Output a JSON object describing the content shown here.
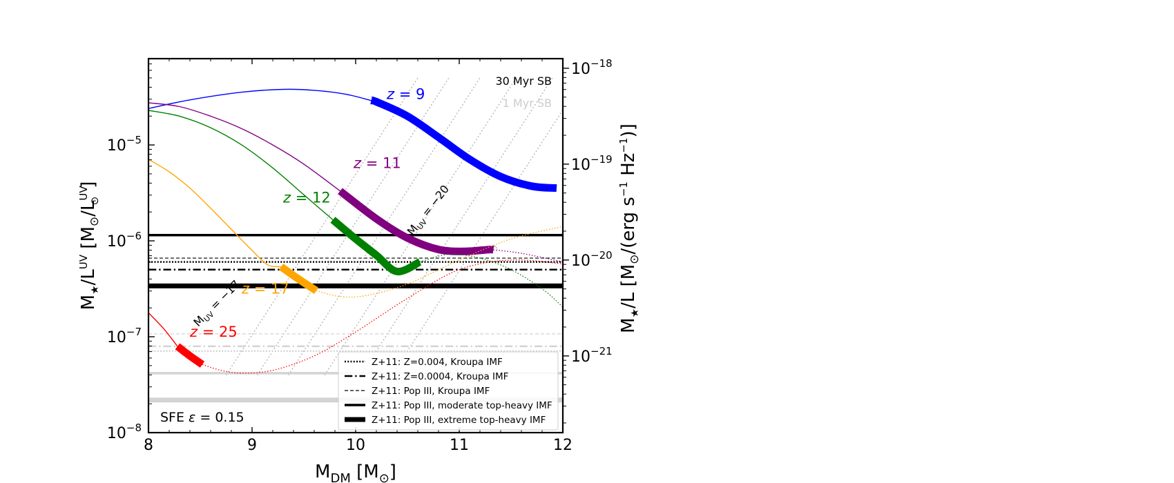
{
  "chart_data": {
    "type": "line",
    "xlabel": "M_DM [M_⊙]",
    "ylabel_left": "M★/L^UV [M⊙/L⊙^UV]",
    "ylabel_right": "M★/L [M⊙/(erg s⁻¹ Hz⁻¹)]",
    "xlim": [
      8,
      12
    ],
    "ylim_log10": [
      -8,
      -4.1
    ],
    "yscale": "log",
    "x_ticks": [
      "8",
      "9",
      "10",
      "11",
      "12"
    ],
    "y_ticks_left": [
      {
        "exp": -8,
        "label": "10",
        "sup": "−8"
      },
      {
        "exp": -7,
        "label": "10",
        "sup": "−7"
      },
      {
        "exp": -6,
        "label": "10",
        "sup": "−6"
      },
      {
        "exp": -5,
        "label": "10",
        "sup": "−5"
      }
    ],
    "y_ticks_right": [
      {
        "exp": -21,
        "label": "10",
        "sup": "−21"
      },
      {
        "exp": -20,
        "label": "10",
        "sup": "−20"
      },
      {
        "exp": -19,
        "label": "10",
        "sup": "−19"
      },
      {
        "exp": -18,
        "label": "10",
        "sup": "−18"
      }
    ],
    "right_axis_offset_log10": -13.8,
    "annotation_sfe": "SFE ε = 0.15",
    "corner_labels": [
      {
        "text": "30 Myr SB",
        "color": "#000000"
      },
      {
        "text": "1 Myr SB",
        "color": "#cccccc"
      }
    ],
    "mag_labels": [
      {
        "text": "M_UV = −20",
        "x": 10.55,
        "y_log10": -5.95,
        "angle": -52
      },
      {
        "text": "M_UV = −17",
        "x": 8.48,
        "y_log10": -6.9,
        "angle": -45
      }
    ],
    "mag_guides_x_start": [
      8.75,
      9.05,
      9.35,
      9.7,
      10.05,
      10.35
    ],
    "series": [
      {
        "name": "z = 9",
        "color": "#0000ff",
        "x": [
          8.0,
          8.4,
          8.9,
          9.3,
          9.6,
          9.9,
          10.2,
          10.5,
          10.8,
          11.1,
          11.4,
          11.7,
          11.94
        ],
        "y_log10": [
          -4.62,
          -4.53,
          -4.45,
          -4.42,
          -4.43,
          -4.47,
          -4.55,
          -4.7,
          -4.92,
          -5.15,
          -5.33,
          -5.43,
          -5.45
        ],
        "bold_range": [
          10.15,
          11.94
        ],
        "dotted_range": null
      },
      {
        "name": "z = 11",
        "color": "#800080",
        "x": [
          8.0,
          8.3,
          8.6,
          8.9,
          9.2,
          9.5,
          9.85,
          10.2,
          10.5,
          10.8,
          11.05,
          11.3,
          11.6,
          12.0
        ],
        "y_log10": [
          -4.56,
          -4.6,
          -4.7,
          -4.83,
          -5.0,
          -5.2,
          -5.48,
          -5.77,
          -5.97,
          -6.09,
          -6.11,
          -6.09,
          -6.13,
          -6.22
        ],
        "bold_range": [
          9.85,
          11.33
        ],
        "dotted_range": [
          11.33,
          12.0
        ]
      },
      {
        "name": "z = 12",
        "color": "#008000",
        "x": [
          8.0,
          8.3,
          8.6,
          8.9,
          9.2,
          9.5,
          9.78,
          10.0,
          10.2,
          10.4,
          10.62,
          10.9,
          11.2,
          11.5,
          11.8,
          12.0
        ],
        "y_log10": [
          -4.64,
          -4.7,
          -4.82,
          -5.0,
          -5.24,
          -5.52,
          -5.78,
          -5.98,
          -6.15,
          -6.32,
          -6.22,
          -6.14,
          -6.18,
          -6.3,
          -6.5,
          -6.69
        ],
        "bold_range": [
          9.78,
          10.62
        ],
        "dotted_range": [
          10.62,
          12.0
        ]
      },
      {
        "name": "z = 17",
        "color": "#ffa500",
        "x": [
          8.0,
          8.2,
          8.4,
          8.6,
          8.8,
          9.0,
          9.15,
          9.28,
          9.45,
          9.62,
          9.85,
          10.1,
          10.5,
          11.0,
          11.5,
          12.0
        ],
        "y_log10": [
          -5.15,
          -5.28,
          -5.45,
          -5.66,
          -5.88,
          -6.1,
          -6.25,
          -6.27,
          -6.4,
          -6.52,
          -6.58,
          -6.57,
          -6.45,
          -6.2,
          -5.98,
          -5.85
        ],
        "bold_range": [
          9.28,
          9.62
        ],
        "dotted_range": [
          9.62,
          12.0
        ]
      },
      {
        "name": "z = 25",
        "color": "#ff0000",
        "x": [
          8.0,
          8.15,
          8.28,
          8.4,
          8.52,
          8.7,
          8.9,
          9.2,
          9.6,
          10.0,
          10.5,
          11.0,
          11.5,
          12.0
        ],
        "y_log10": [
          -6.75,
          -6.92,
          -7.1,
          -7.2,
          -7.29,
          -7.35,
          -7.38,
          -7.35,
          -7.2,
          -6.95,
          -6.6,
          -6.3,
          -6.2,
          -6.24
        ],
        "bold_range": [
          8.28,
          8.52
        ],
        "dotted_range": [
          8.52,
          12.0
        ]
      }
    ],
    "z_labels": [
      {
        "text": "z = 9",
        "x": 10.3,
        "y_log10": -4.52,
        "color": "#0000ff"
      },
      {
        "text": "z = 11",
        "x": 9.98,
        "y_log10": -5.24,
        "color": "#800080"
      },
      {
        "text": "z = 12",
        "x": 9.3,
        "y_log10": -5.6,
        "color": "#008000"
      },
      {
        "text": "z = 17",
        "x": 8.9,
        "y_log10": -6.55,
        "color": "#ffa500"
      },
      {
        "text": "z = 25",
        "x": 8.4,
        "y_log10": -7.0,
        "color": "#ff0000"
      }
    ],
    "horizontal_lines": [
      {
        "label": "Z+11: Z=0.004, Kroupa IMF",
        "style": "dotted",
        "width": 2.5,
        "y_log10": -6.22,
        "color": "#000000",
        "sb": "30 Myr"
      },
      {
        "label": "Z+11: Z=0.0004, Kroupa IMF",
        "style": "dashdot",
        "width": 2.5,
        "y_log10": -6.3,
        "color": "#000000",
        "sb": "30 Myr"
      },
      {
        "label": "Z+11: Pop III, Kroupa IMF",
        "style": "dashed",
        "width": 1.2,
        "y_log10": -6.18,
        "color": "#000000",
        "sb": "30 Myr"
      },
      {
        "label": "Z+11: Pop III, moderate top-heavy IMF",
        "style": "solid",
        "width": 3.5,
        "y_log10": -5.94,
        "color": "#000000",
        "sb": "30 Myr"
      },
      {
        "label": "Z+11: Pop III, extreme top-heavy IMF",
        "style": "solid",
        "width": 7,
        "y_log10": -6.47,
        "color": "#000000",
        "sb": "30 Myr"
      },
      {
        "label": "",
        "style": "dotted",
        "width": 2.5,
        "y_log10": -7.15,
        "color": "#d3d3d3",
        "sb": "1 Myr"
      },
      {
        "label": "",
        "style": "dashdot",
        "width": 2.5,
        "y_log10": -7.1,
        "color": "#d3d3d3",
        "sb": "1 Myr"
      },
      {
        "label": "",
        "style": "dashed",
        "width": 1.2,
        "y_log10": -6.97,
        "color": "#d3d3d3",
        "sb": "1 Myr"
      },
      {
        "label": "",
        "style": "solid",
        "width": 3.5,
        "y_log10": -7.38,
        "color": "#d3d3d3",
        "sb": "1 Myr"
      },
      {
        "label": "",
        "style": "solid",
        "width": 7,
        "y_log10": -7.66,
        "color": "#d3d3d3",
        "sb": "1 Myr"
      }
    ],
    "legend": {
      "placement": "lower-right",
      "entries": [
        {
          "label": "Z+11: Z=0.004, Kroupa IMF",
          "style": "dotted",
          "width": 2.5
        },
        {
          "label": "Z+11: Z=0.0004, Kroupa IMF",
          "style": "dashdot",
          "width": 2.5
        },
        {
          "label": "Z+11: Pop III, Kroupa IMF",
          "style": "dashed",
          "width": 1.2
        },
        {
          "label": "Z+11: Pop III, moderate top-heavy IMF",
          "style": "solid",
          "width": 3.5
        },
        {
          "label": "Z+11: Pop III, extreme top-heavy IMF",
          "style": "solid",
          "width": 7
        }
      ]
    }
  }
}
